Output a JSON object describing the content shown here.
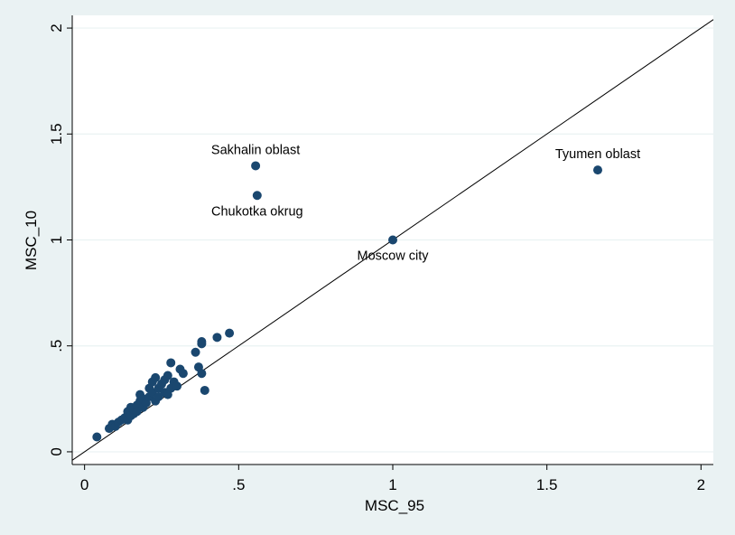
{
  "chart_data": {
    "type": "scatter",
    "title": "",
    "xlabel": "MSC_95",
    "ylabel": "MSC_10",
    "xlim": [
      -0.04,
      2.04
    ],
    "ylim": [
      -0.06,
      2.06
    ],
    "x_ticks": [
      0,
      0.5,
      1,
      1.5,
      2
    ],
    "x_tick_labels": [
      "0",
      ".5",
      "1",
      "1.5",
      "2"
    ],
    "y_ticks": [
      0,
      0.5,
      1,
      1.5,
      2
    ],
    "y_tick_labels": [
      "0",
      ".5",
      "1",
      "1.5",
      "2"
    ],
    "grid": "horizontal",
    "reference_line": "y = x",
    "colors": {
      "marker": "#1a476f",
      "grid": "#eaf2f3",
      "background": "#eaf2f3",
      "plot_background": "#ffffff"
    },
    "points": [
      {
        "x": 0.04,
        "y": 0.07
      },
      {
        "x": 0.08,
        "y": 0.11
      },
      {
        "x": 0.09,
        "y": 0.13
      },
      {
        "x": 0.1,
        "y": 0.12
      },
      {
        "x": 0.11,
        "y": 0.14
      },
      {
        "x": 0.12,
        "y": 0.15
      },
      {
        "x": 0.13,
        "y": 0.16
      },
      {
        "x": 0.14,
        "y": 0.15
      },
      {
        "x": 0.14,
        "y": 0.19
      },
      {
        "x": 0.15,
        "y": 0.17
      },
      {
        "x": 0.15,
        "y": 0.21
      },
      {
        "x": 0.16,
        "y": 0.18
      },
      {
        "x": 0.16,
        "y": 0.2
      },
      {
        "x": 0.17,
        "y": 0.22
      },
      {
        "x": 0.17,
        "y": 0.19
      },
      {
        "x": 0.18,
        "y": 0.24
      },
      {
        "x": 0.18,
        "y": 0.27
      },
      {
        "x": 0.19,
        "y": 0.21
      },
      {
        "x": 0.19,
        "y": 0.25
      },
      {
        "x": 0.2,
        "y": 0.23
      },
      {
        "x": 0.21,
        "y": 0.3
      },
      {
        "x": 0.21,
        "y": 0.26
      },
      {
        "x": 0.22,
        "y": 0.28
      },
      {
        "x": 0.22,
        "y": 0.33
      },
      {
        "x": 0.23,
        "y": 0.24
      },
      {
        "x": 0.23,
        "y": 0.35
      },
      {
        "x": 0.24,
        "y": 0.3
      },
      {
        "x": 0.24,
        "y": 0.26
      },
      {
        "x": 0.25,
        "y": 0.32
      },
      {
        "x": 0.26,
        "y": 0.28
      },
      {
        "x": 0.26,
        "y": 0.34
      },
      {
        "x": 0.27,
        "y": 0.36
      },
      {
        "x": 0.27,
        "y": 0.27
      },
      {
        "x": 0.28,
        "y": 0.3
      },
      {
        "x": 0.28,
        "y": 0.42
      },
      {
        "x": 0.29,
        "y": 0.33
      },
      {
        "x": 0.3,
        "y": 0.31
      },
      {
        "x": 0.31,
        "y": 0.39
      },
      {
        "x": 0.32,
        "y": 0.37
      },
      {
        "x": 0.36,
        "y": 0.47
      },
      {
        "x": 0.37,
        "y": 0.4
      },
      {
        "x": 0.38,
        "y": 0.52
      },
      {
        "x": 0.38,
        "y": 0.51
      },
      {
        "x": 0.38,
        "y": 0.37
      },
      {
        "x": 0.39,
        "y": 0.29
      },
      {
        "x": 0.43,
        "y": 0.54
      },
      {
        "x": 0.47,
        "y": 0.56
      },
      {
        "x": 0.555,
        "y": 1.35,
        "label": "Sakhalin oblast",
        "label_pos": "above"
      },
      {
        "x": 0.56,
        "y": 1.21,
        "label": "Chukotka okrug",
        "label_pos": "below"
      },
      {
        "x": 1.0,
        "y": 1.0,
        "label": "Moscow city",
        "label_pos": "below"
      },
      {
        "x": 1.665,
        "y": 1.33,
        "label": "Tyumen oblast",
        "label_pos": "above"
      }
    ]
  }
}
